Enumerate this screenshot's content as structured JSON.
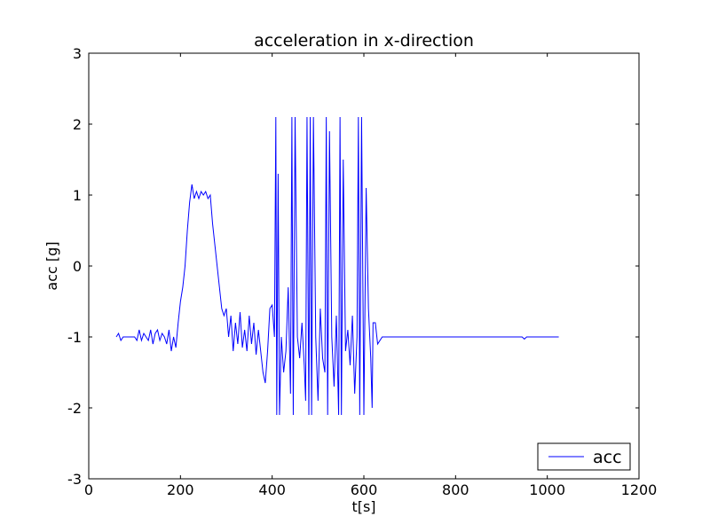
{
  "chart_data": {
    "type": "line",
    "title": "acceleration in x-direction",
    "xlabel": "t[s]",
    "ylabel": "acc [g]",
    "xlim": [
      0,
      1200
    ],
    "xticks": [
      0,
      200,
      400,
      600,
      800,
      1000,
      1200
    ],
    "ylim": [
      -3,
      3
    ],
    "yticks": [
      -3,
      -2,
      -1,
      0,
      1,
      2,
      3
    ],
    "legend": "lower right",
    "grid": false,
    "x": [
      60,
      65,
      70,
      75,
      80,
      90,
      100,
      105,
      110,
      115,
      120,
      125,
      130,
      135,
      140,
      145,
      150,
      155,
      160,
      165,
      170,
      175,
      180,
      185,
      190,
      195,
      200,
      205,
      210,
      215,
      220,
      225,
      230,
      235,
      240,
      245,
      250,
      255,
      260,
      265,
      270,
      275,
      280,
      285,
      290,
      295,
      300,
      305,
      310,
      315,
      320,
      325,
      330,
      335,
      340,
      345,
      350,
      355,
      360,
      365,
      370,
      375,
      380,
      385,
      390,
      395,
      400,
      405,
      408,
      410,
      413,
      416,
      420,
      425,
      430,
      435,
      440,
      443,
      446,
      450,
      455,
      460,
      465,
      470,
      473,
      476,
      480,
      483,
      486,
      490,
      495,
      500,
      505,
      510,
      515,
      518,
      521,
      525,
      530,
      535,
      540,
      545,
      548,
      551,
      555,
      560,
      565,
      570,
      575,
      580,
      585,
      588,
      591,
      595,
      600,
      605,
      610,
      615,
      618,
      620,
      625,
      630,
      640,
      660,
      680,
      700,
      750,
      800,
      850,
      900,
      945,
      950,
      955,
      1000,
      1025
    ],
    "series": [
      {
        "name": "acc",
        "color": "#0000ff",
        "values": [
          -1,
          -0.95,
          -1.05,
          -1,
          -1,
          -1,
          -1,
          -1.05,
          -0.9,
          -1.05,
          -0.95,
          -1.0,
          -1.05,
          -0.9,
          -1.1,
          -0.95,
          -0.9,
          -1.05,
          -0.95,
          -1.0,
          -1.1,
          -0.9,
          -1.2,
          -1.0,
          -1.15,
          -0.8,
          -0.5,
          -0.3,
          0.0,
          0.5,
          0.9,
          1.15,
          0.95,
          1.05,
          0.95,
          1.05,
          1.0,
          1.05,
          0.95,
          1.0,
          0.6,
          0.3,
          0.0,
          -0.3,
          -0.6,
          -0.7,
          -0.6,
          -1.0,
          -0.7,
          -1.2,
          -0.8,
          -1.1,
          -0.65,
          -1.15,
          -0.9,
          -1.2,
          -0.7,
          -1.1,
          -0.8,
          -1.25,
          -0.9,
          -1.2,
          -1.5,
          -1.65,
          -1.2,
          -0.6,
          -0.55,
          -1.0,
          2.1,
          -2.1,
          1.3,
          -2.1,
          -1.0,
          -1.5,
          -1.2,
          -0.3,
          -1.8,
          2.1,
          -2.1,
          2.1,
          -1.0,
          -1.3,
          -0.8,
          -1.4,
          -1.9,
          2.1,
          -2.1,
          2.1,
          -2.1,
          2.1,
          -1.0,
          -1.9,
          -0.6,
          -1.3,
          -1.5,
          2.1,
          -2.1,
          1.9,
          -1.0,
          -1.7,
          -0.7,
          -2.1,
          2.1,
          -2.1,
          1.5,
          -1.2,
          -0.9,
          -1.4,
          -0.7,
          -1.8,
          -1.0,
          2.1,
          -2.1,
          2.1,
          -2.1,
          1.1,
          -0.6,
          -1.3,
          -2.0,
          -0.8,
          -0.8,
          -1.1,
          -1.0,
          -1.0,
          -1.0,
          -1.0,
          -1,
          -1,
          -1,
          -1,
          -1,
          -1.03,
          -1,
          -1,
          -1
        ]
      }
    ]
  }
}
